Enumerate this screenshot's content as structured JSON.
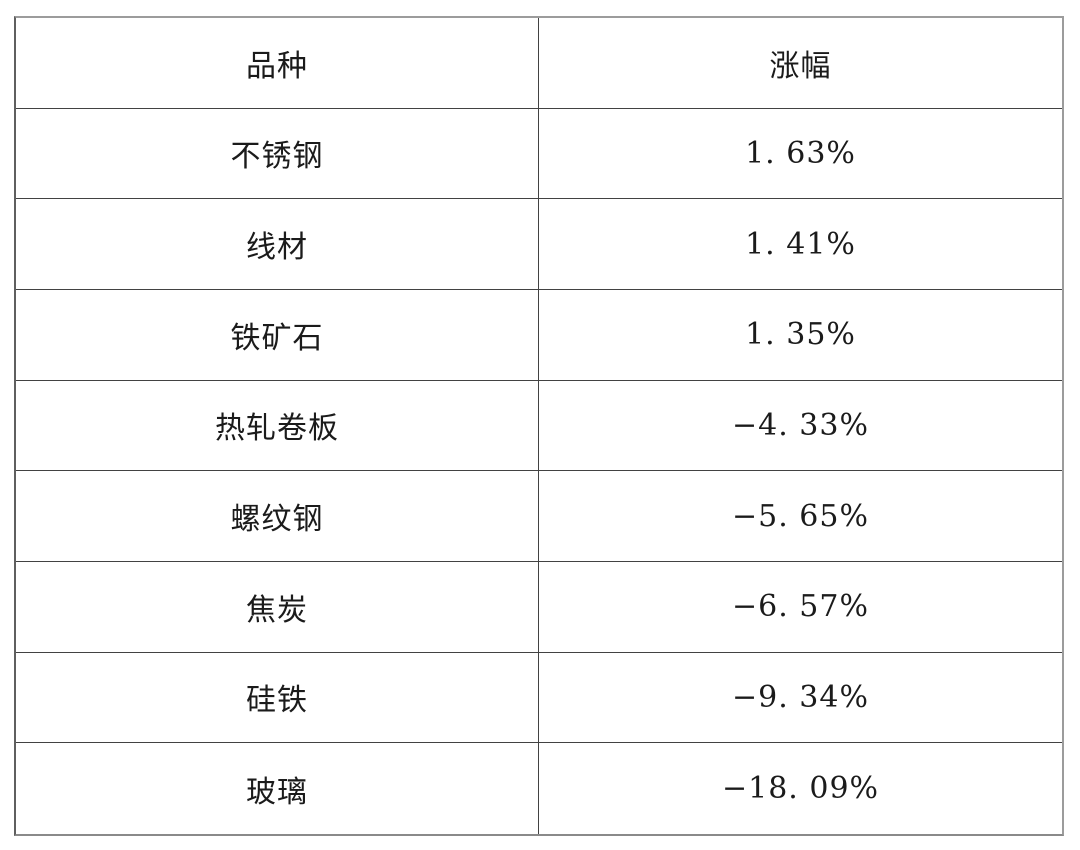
{
  "table": {
    "headers": [
      "品种",
      "涨幅"
    ],
    "rows": [
      {
        "variety": "不锈钢",
        "change": "1. 63%"
      },
      {
        "variety": "线材",
        "change": "1. 41%"
      },
      {
        "variety": "铁矿石",
        "change": "1. 35%"
      },
      {
        "variety": "热轧卷板",
        "change": "−4. 33%"
      },
      {
        "variety": "螺纹钢",
        "change": "−5. 65%"
      },
      {
        "variety": "焦炭",
        "change": "−6. 57%"
      },
      {
        "variety": "硅铁",
        "change": "−9. 34%"
      },
      {
        "variety": "玻璃",
        "change": "−18. 09%"
      }
    ]
  },
  "colors": {
    "background": "#ffffff",
    "text": "#1b1b1b",
    "grid_line": "#424242",
    "outer_border": "#9c9c9c"
  }
}
